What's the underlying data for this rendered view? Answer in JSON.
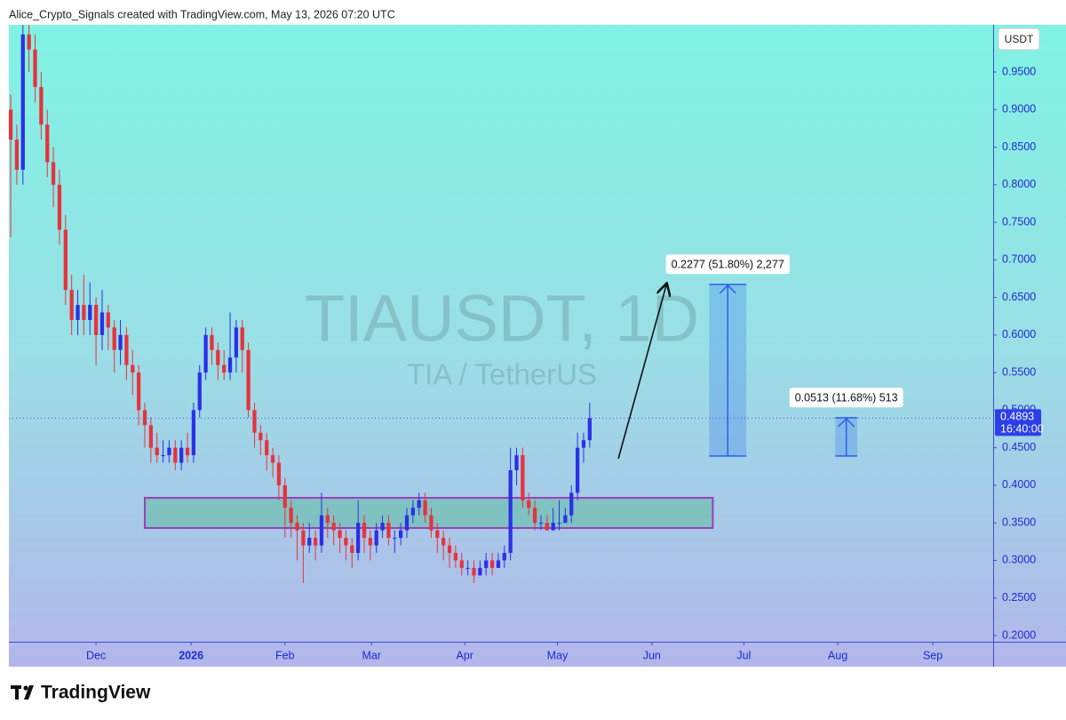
{
  "chart_data": {
    "type": "candlestick",
    "header": "Alice_Crypto_Signals created with TradingView.com, May 13, 2026 07:20 UTC",
    "watermark_title": "TIAUSDT, 1D",
    "watermark_subtitle": "TIA / TetherUS",
    "currency": "USDT",
    "last_price": 0.4893,
    "countdown": "16:40:00",
    "up_color": "#2b30e8",
    "down_color": "#e8323c",
    "open": [
      0.9,
      0.86,
      0.82,
      1.0,
      0.98,
      0.93,
      0.88,
      0.83,
      0.8,
      0.74,
      0.66,
      0.62,
      0.64,
      0.62,
      0.64,
      0.6,
      0.63,
      0.61,
      0.58,
      0.6,
      0.56,
      0.55,
      0.5,
      0.48,
      0.45,
      0.44,
      0.44,
      0.45,
      0.43,
      0.45,
      0.44,
      0.5,
      0.55,
      0.6,
      0.58,
      0.56,
      0.55,
      0.57,
      0.61,
      0.58,
      0.5,
      0.47,
      0.46,
      0.44,
      0.43,
      0.4,
      0.37,
      0.35,
      0.34,
      0.32,
      0.33,
      0.32,
      0.36,
      0.35,
      0.34,
      0.33,
      0.32,
      0.31,
      0.35,
      0.33,
      0.32,
      0.34,
      0.35,
      0.33,
      0.33,
      0.34,
      0.36,
      0.37,
      0.38,
      0.36,
      0.34,
      0.33,
      0.32,
      0.31,
      0.3,
      0.29,
      0.29,
      0.28,
      0.29,
      0.3,
      0.29,
      0.3,
      0.31,
      0.42,
      0.44,
      0.38,
      0.37,
      0.35,
      0.35,
      0.34,
      0.35,
      0.35,
      0.36,
      0.39,
      0.45,
      0.46
    ],
    "high": [
      0.92,
      0.88,
      1.02,
      1.02,
      1.0,
      0.95,
      0.9,
      0.85,
      0.82,
      0.76,
      0.68,
      0.66,
      0.68,
      0.67,
      0.65,
      0.66,
      0.64,
      0.62,
      0.62,
      0.61,
      0.58,
      0.56,
      0.51,
      0.49,
      0.47,
      0.46,
      0.46,
      0.46,
      0.46,
      0.47,
      0.51,
      0.56,
      0.61,
      0.61,
      0.59,
      0.58,
      0.63,
      0.62,
      0.62,
      0.59,
      0.51,
      0.48,
      0.47,
      0.45,
      0.44,
      0.41,
      0.38,
      0.36,
      0.35,
      0.35,
      0.34,
      0.39,
      0.37,
      0.36,
      0.35,
      0.34,
      0.33,
      0.38,
      0.36,
      0.34,
      0.35,
      0.36,
      0.36,
      0.34,
      0.35,
      0.37,
      0.38,
      0.39,
      0.39,
      0.37,
      0.35,
      0.34,
      0.33,
      0.32,
      0.31,
      0.3,
      0.3,
      0.3,
      0.31,
      0.31,
      0.31,
      0.32,
      0.45,
      0.45,
      0.45,
      0.39,
      0.38,
      0.36,
      0.36,
      0.37,
      0.38,
      0.37,
      0.4,
      0.47,
      0.47,
      0.51
    ],
    "low": [
      0.73,
      0.8,
      0.8,
      0.95,
      0.91,
      0.86,
      0.81,
      0.77,
      0.72,
      0.64,
      0.6,
      0.6,
      0.6,
      0.6,
      0.56,
      0.58,
      0.58,
      0.55,
      0.56,
      0.54,
      0.52,
      0.48,
      0.45,
      0.43,
      0.43,
      0.43,
      0.43,
      0.42,
      0.42,
      0.43,
      0.43,
      0.49,
      0.54,
      0.56,
      0.54,
      0.54,
      0.54,
      0.55,
      0.55,
      0.49,
      0.45,
      0.44,
      0.42,
      0.41,
      0.38,
      0.33,
      0.33,
      0.3,
      0.27,
      0.31,
      0.3,
      0.31,
      0.33,
      0.32,
      0.31,
      0.3,
      0.29,
      0.3,
      0.31,
      0.3,
      0.31,
      0.33,
      0.32,
      0.31,
      0.32,
      0.33,
      0.35,
      0.36,
      0.35,
      0.33,
      0.31,
      0.3,
      0.29,
      0.29,
      0.28,
      0.28,
      0.27,
      0.28,
      0.28,
      0.28,
      0.29,
      0.29,
      0.3,
      0.4,
      0.37,
      0.36,
      0.34,
      0.34,
      0.34,
      0.34,
      0.34,
      0.35,
      0.35,
      0.38,
      0.43,
      0.45
    ],
    "close": [
      0.86,
      0.82,
      1.0,
      0.98,
      0.93,
      0.88,
      0.83,
      0.8,
      0.74,
      0.66,
      0.62,
      0.64,
      0.62,
      0.64,
      0.6,
      0.63,
      0.61,
      0.58,
      0.6,
      0.56,
      0.55,
      0.5,
      0.48,
      0.45,
      0.44,
      0.44,
      0.45,
      0.43,
      0.45,
      0.44,
      0.5,
      0.55,
      0.6,
      0.58,
      0.56,
      0.55,
      0.57,
      0.61,
      0.58,
      0.5,
      0.47,
      0.46,
      0.44,
      0.43,
      0.4,
      0.37,
      0.35,
      0.34,
      0.32,
      0.33,
      0.32,
      0.36,
      0.35,
      0.34,
      0.33,
      0.32,
      0.31,
      0.35,
      0.33,
      0.32,
      0.34,
      0.35,
      0.33,
      0.33,
      0.34,
      0.36,
      0.37,
      0.38,
      0.36,
      0.34,
      0.33,
      0.32,
      0.31,
      0.3,
      0.29,
      0.29,
      0.28,
      0.29,
      0.3,
      0.29,
      0.3,
      0.31,
      0.42,
      0.44,
      0.38,
      0.37,
      0.35,
      0.35,
      0.34,
      0.35,
      0.35,
      0.36,
      0.39,
      0.45,
      0.46,
      0.4893
    ],
    "xlim": [
      -0.3,
      161.2
    ],
    "xticks": [
      {
        "value": 14,
        "label": "Dec"
      },
      {
        "value": 29.6,
        "label": "2026"
      },
      {
        "value": 45,
        "label": "Feb"
      },
      {
        "value": 59.2,
        "label": "Mar"
      },
      {
        "value": 74.5,
        "label": "Apr"
      },
      {
        "value": 89.7,
        "label": "May"
      },
      {
        "value": 105.2,
        "label": "Jun"
      },
      {
        "value": 120.3,
        "label": "Jul"
      },
      {
        "value": 135.7,
        "label": "Aug"
      },
      {
        "value": 151.3,
        "label": "Sep"
      }
    ],
    "ylim": [
      0.1917,
      1.0127
    ],
    "yticks": [
      {
        "value": 0.2,
        "label": "0.2000"
      },
      {
        "value": 0.25,
        "label": "0.2500"
      },
      {
        "value": 0.3,
        "label": "0.3000"
      },
      {
        "value": 0.35,
        "label": "0.3500"
      },
      {
        "value": 0.4,
        "label": "0.4000"
      },
      {
        "value": 0.45,
        "label": "0.4500"
      },
      {
        "value": 0.5,
        "label": "0.5000"
      },
      {
        "value": 0.55,
        "label": "0.5500"
      },
      {
        "value": 0.6,
        "label": "0.6000"
      },
      {
        "value": 0.65,
        "label": "0.6500"
      },
      {
        "value": 0.7,
        "label": "0.7000"
      },
      {
        "value": 0.75,
        "label": "0.7500"
      },
      {
        "value": 0.8,
        "label": "0.8000"
      },
      {
        "value": 0.85,
        "label": "0.8500"
      },
      {
        "value": 0.9,
        "label": "0.9000"
      },
      {
        "value": 0.95,
        "label": "0.9500"
      }
    ],
    "support_zone": {
      "x": [
        22.0,
        115.2
      ],
      "y": [
        0.3431,
        0.3833
      ]
    },
    "arrow": {
      "x": [
        99.7,
        107.6
      ],
      "y": [
        0.4355,
        0.6673
      ]
    },
    "measures": [
      {
        "x": [
          114.6,
          120.7
        ],
        "y": [
          0.4389,
          0.6673
        ],
        "label": "0.2277 (51.80%) 2,277"
      },
      {
        "x": [
          135.3,
          138.9
        ],
        "y": [
          0.4389,
          0.4898
        ],
        "label": "0.0513 (11.68%) 513"
      }
    ],
    "brand": "TradingView"
  }
}
